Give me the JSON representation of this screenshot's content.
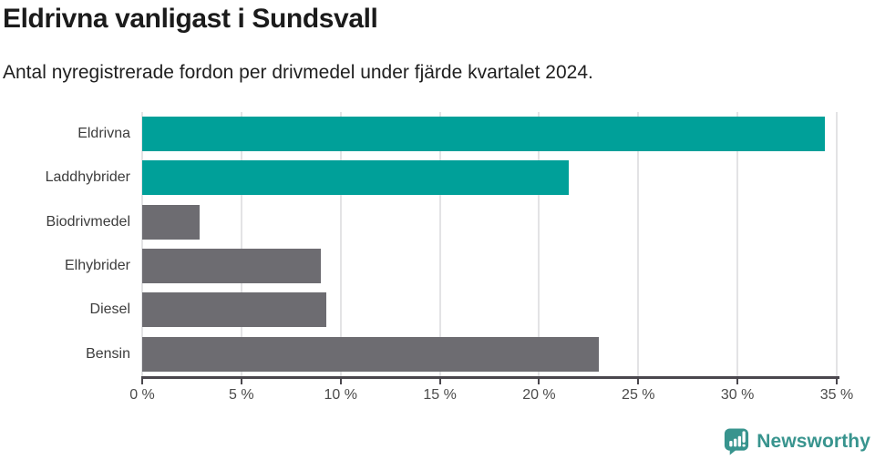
{
  "header": {
    "title": "Eldrivna vanligast i Sundsvall",
    "subtitle": "Antal nyregistrerade fordon per drivmedel under fjärde kvartalet 2024."
  },
  "chart_data": {
    "type": "bar",
    "orientation": "horizontal",
    "title": "Eldrivna vanligast i Sundsvall",
    "subtitle": "Antal nyregistrerade fordon per drivmedel under fjärde kvartalet 2024.",
    "categories": [
      "Eldrivna",
      "Laddhybrider",
      "Biodrivmedel",
      "Elhybrider",
      "Diesel",
      "Bensin"
    ],
    "values": [
      34.4,
      21.5,
      2.9,
      9.0,
      9.3,
      23.0
    ],
    "unit": "%",
    "xlim": [
      0,
      35
    ],
    "x_ticks": [
      0,
      5,
      10,
      15,
      20,
      25,
      30,
      35
    ],
    "x_tick_labels": [
      "0 %",
      "5 %",
      "10 %",
      "15 %",
      "20 %",
      "25 %",
      "30 %",
      "35 %"
    ],
    "grid": "vertical",
    "legend": "none",
    "bar_colors": [
      "#00a099",
      "#00a099",
      "#6d6c71",
      "#6d6c71",
      "#6d6c71",
      "#6d6c71"
    ],
    "highlight_color": "#00a099",
    "default_color": "#6d6c71"
  },
  "footer": {
    "brand": "Newsworthy",
    "brand_color": "#38948e",
    "logo_icon": "bar-chart-speech-bubble-icon"
  },
  "style": {
    "background": "#ffffff",
    "gridline_color": "#e3e3e5",
    "axis_color": "#4a474d"
  }
}
